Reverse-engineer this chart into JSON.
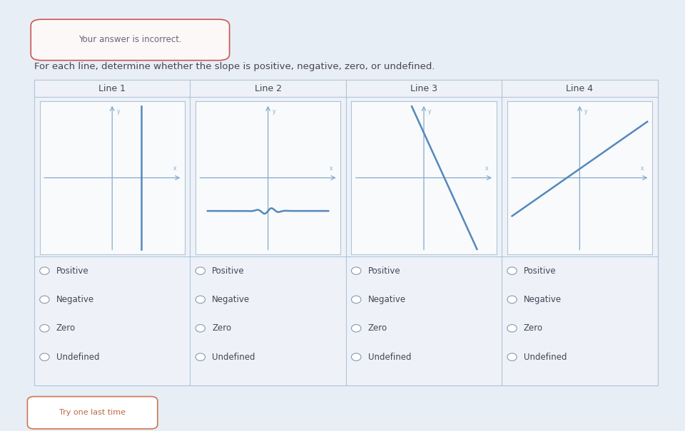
{
  "title_text": "For each line, determine whether the slope is positive, negative, zero, or undefined.",
  "header_text": "Your answer is incorrect.",
  "bg_color": "#e8eef5",
  "table_bg": "#eef2f8",
  "graph_bg": "#f8fafc",
  "border_color": "#b0c4d8",
  "line_color": "#5588bb",
  "axis_color": "#88aacc",
  "lines": [
    {
      "label": "Line 1",
      "type": "vertical"
    },
    {
      "label": "Line 2",
      "type": "zero"
    },
    {
      "label": "Line 3",
      "type": "negative"
    },
    {
      "label": "Line 4",
      "type": "positive"
    }
  ],
  "options": [
    "Positive",
    "Negative",
    "Zero",
    "Undefined"
  ],
  "font_color": "#444455",
  "radio_color": "#8899aa",
  "footer_text": "Try one last time",
  "title_fontsize": 9.5,
  "option_fontsize": 8.5,
  "label_fontsize": 9,
  "header_fontsize": 8.5
}
